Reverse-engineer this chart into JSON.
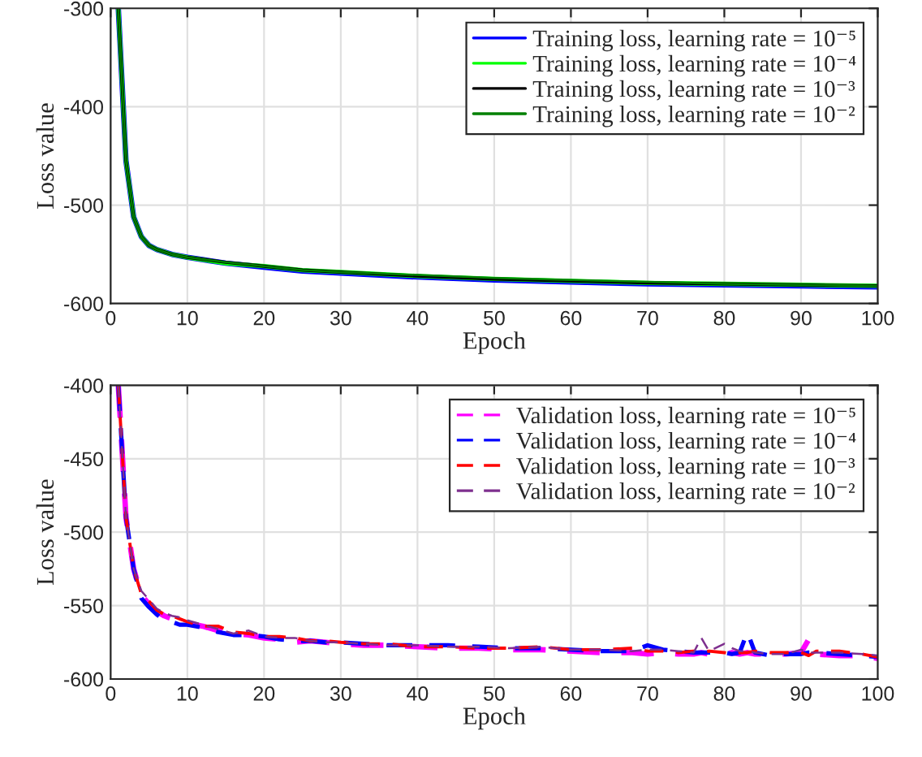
{
  "chart_data": [
    {
      "type": "line",
      "xlabel": "Epoch",
      "ylabel": "Loss value",
      "xlim": [
        0,
        100
      ],
      "ylim": [
        -600,
        -300
      ],
      "xticks": [
        0,
        10,
        20,
        30,
        40,
        50,
        60,
        70,
        80,
        90,
        100
      ],
      "yticks": [
        -600,
        -500,
        -400,
        -300
      ],
      "grid": true,
      "legend": "top right",
      "line_style": "solid",
      "marker": "none",
      "x": [
        1,
        2,
        3,
        4,
        5,
        6,
        8,
        10,
        15,
        20,
        25,
        30,
        40,
        50,
        60,
        70,
        80,
        90,
        100
      ],
      "series": [
        {
          "name": "Training loss, learning rate = 10⁻⁵",
          "color": "#0000ff",
          "values": [
            -300,
            -455,
            -512,
            -532,
            -541,
            -545,
            -550,
            -553,
            -559,
            -563,
            -567,
            -569,
            -573,
            -576,
            -578,
            -580,
            -581,
            -582,
            -583
          ]
        },
        {
          "name": "Training loss, learning rate = 10⁻⁴",
          "color": "#00ff00",
          "values": [
            -300,
            -455,
            -512,
            -532,
            -541,
            -545,
            -550,
            -553,
            -559,
            -562,
            -566,
            -568,
            -572,
            -575,
            -577,
            -579,
            -580,
            -581,
            -582
          ]
        },
        {
          "name": "Training loss, learning rate = 10⁻³",
          "color": "#000000",
          "values": [
            -300,
            -455,
            -512,
            -532,
            -541,
            -545,
            -550,
            -553,
            -558,
            -562,
            -566,
            -568,
            -572,
            -575,
            -577,
            -579,
            -580,
            -581,
            -582
          ]
        },
        {
          "name": "Training loss, learning rate = 10⁻²",
          "color": "#008000",
          "values": [
            -300,
            -455,
            -512,
            -532,
            -541,
            -545,
            -550,
            -553,
            -558,
            -562,
            -566,
            -568,
            -571,
            -574,
            -576,
            -578,
            -580,
            -581,
            -582
          ]
        }
      ]
    },
    {
      "type": "line",
      "xlabel": "Epoch",
      "ylabel": "Loss value",
      "xlim": [
        0,
        100
      ],
      "ylim": [
        -600,
        -400
      ],
      "xticks": [
        0,
        10,
        20,
        30,
        40,
        50,
        60,
        70,
        80,
        90,
        100
      ],
      "yticks": [
        -600,
        -550,
        -500,
        -450,
        -400
      ],
      "grid": true,
      "legend": "top right",
      "line_style": "dashed",
      "marker": "none",
      "x": [
        1,
        2,
        3,
        4,
        5,
        6,
        7,
        8,
        9,
        10,
        12,
        14,
        16,
        18,
        20,
        22,
        24,
        26,
        28,
        30,
        33,
        36,
        40,
        44,
        48,
        52,
        56,
        60,
        64,
        68,
        70,
        72,
        74,
        76,
        77,
        78,
        80,
        81,
        82,
        83,
        84,
        86,
        88,
        90,
        91,
        92,
        95,
        98,
        100
      ],
      "series": [
        {
          "name": "Validation loss, learning rate = 10⁻⁵",
          "color": "#ff00ff",
          "values": [
            -400,
            -490,
            -525,
            -543,
            -549,
            -554,
            -557,
            -559,
            -560,
            -562,
            -564,
            -567,
            -569,
            -570,
            -572,
            -573,
            -575,
            -574,
            -575,
            -576,
            -577,
            -577,
            -578,
            -579,
            -579,
            -580,
            -580,
            -581,
            -582,
            -582,
            -583,
            -582,
            -583,
            -583,
            -582,
            -583,
            -583,
            -582,
            -583,
            -582,
            -583,
            -583,
            -583,
            -582,
            -573,
            -583,
            -584,
            -584,
            -586
          ]
        },
        {
          "name": "Validation loss, learning rate = 10⁻⁴",
          "color": "#0000ff",
          "values": [
            -400,
            -490,
            -525,
            -545,
            -551,
            -556,
            -560,
            -561,
            -563,
            -563,
            -565,
            -568,
            -570,
            -570,
            -571,
            -573,
            -574,
            -574,
            -575,
            -575,
            -576,
            -577,
            -577,
            -577,
            -578,
            -579,
            -579,
            -580,
            -581,
            -581,
            -577,
            -580,
            -581,
            -582,
            -582,
            -582,
            -582,
            -583,
            -582,
            -568,
            -582,
            -584,
            -583,
            -583,
            -582,
            -582,
            -583,
            -584,
            -585
          ]
        },
        {
          "name": "Validation loss, learning rate = 10⁻³",
          "color": "#ff0000",
          "values": [
            -400,
            -490,
            -525,
            -542,
            -547,
            -553,
            -556,
            -557,
            -559,
            -561,
            -564,
            -564,
            -568,
            -569,
            -571,
            -571,
            -572,
            -574,
            -574,
            -575,
            -576,
            -576,
            -578,
            -578,
            -579,
            -579,
            -578,
            -580,
            -580,
            -579,
            -581,
            -581,
            -582,
            -581,
            -582,
            -581,
            -582,
            -583,
            -582,
            -582,
            -581,
            -582,
            -582,
            -582,
            -584,
            -581,
            -581,
            -583,
            -585
          ]
        },
        {
          "name": "Validation loss, learning rate = 10⁻²",
          "color": "#7e2f8e",
          "values": [
            -400,
            -490,
            -525,
            -540,
            -546,
            -552,
            -555,
            -557,
            -558,
            -560,
            -563,
            -566,
            -569,
            -567,
            -571,
            -572,
            -572,
            -574,
            -575,
            -575,
            -576,
            -577,
            -577,
            -578,
            -578,
            -579,
            -578,
            -580,
            -580,
            -581,
            -580,
            -580,
            -581,
            -582,
            -572,
            -581,
            -576,
            -579,
            -581,
            -581,
            -582,
            -583,
            -583,
            -580,
            -582,
            -582,
            -582,
            -583,
            -584
          ]
        }
      ]
    }
  ]
}
